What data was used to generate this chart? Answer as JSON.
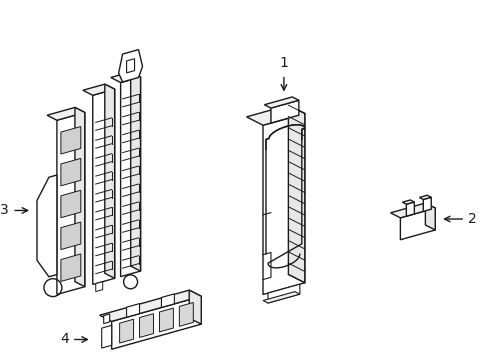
{
  "background_color": "#ffffff",
  "line_color": "#1a1a1a",
  "line_width": 1.0,
  "label_fontsize": 10,
  "figsize": [
    4.89,
    3.6
  ],
  "dpi": 100
}
